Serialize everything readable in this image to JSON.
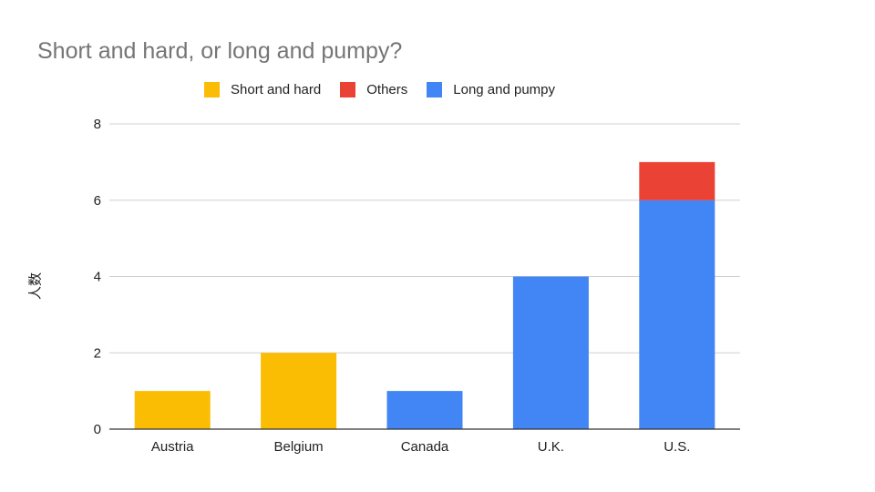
{
  "chart_data": {
    "type": "bar",
    "stacked": true,
    "title": "Short and hard, or long and pumpy?",
    "xlabel": "",
    "ylabel": "人数",
    "categories": [
      "Austria",
      "Belgium",
      "Canada",
      "U.K.",
      "U.S."
    ],
    "series": [
      {
        "name": "Short and hard",
        "color": "#fbbc04",
        "values": [
          1,
          2,
          0,
          0,
          0
        ]
      },
      {
        "name": "Others",
        "color": "#ea4335",
        "values": [
          0,
          0,
          0,
          0,
          1
        ]
      },
      {
        "name": "Long and pumpy",
        "color": "#4285f4",
        "values": [
          0,
          0,
          1,
          4,
          6
        ]
      }
    ],
    "stack_order": [
      "Short and hard",
      "Long and pumpy",
      "Others"
    ],
    "ylim": [
      0,
      8
    ],
    "yticks": [
      0,
      2,
      4,
      6,
      8
    ],
    "grid": true,
    "legend_position": "top"
  }
}
